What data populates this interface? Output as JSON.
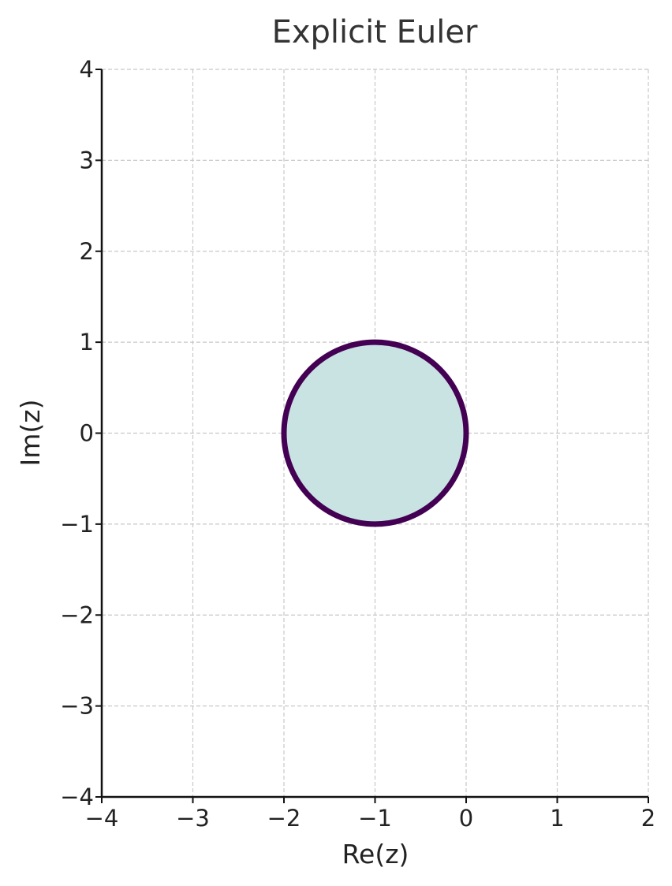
{
  "chart_data": {
    "type": "area",
    "title": "Explicit Euler",
    "xlabel": "Re(z)",
    "ylabel": "Im(z)",
    "xlim": [
      -4,
      2
    ],
    "ylim": [
      -4,
      4
    ],
    "x_ticks": [
      -4,
      -3,
      -2,
      -1,
      0,
      1,
      2
    ],
    "y_ticks": [
      -4,
      -3,
      -2,
      -1,
      0,
      1,
      2,
      3,
      4
    ],
    "x_tick_labels": [
      "−4",
      "−3",
      "−2",
      "−1",
      "0",
      "1",
      "2"
    ],
    "y_tick_labels": [
      "−4",
      "−3",
      "−2",
      "−1",
      "0",
      "1",
      "2",
      "3",
      "4"
    ],
    "grid": true,
    "region": {
      "shape": "circle",
      "center": [
        -1,
        0
      ],
      "radius": 1,
      "fill_color": "#c9e3e2",
      "edge_color": "#440154"
    }
  }
}
